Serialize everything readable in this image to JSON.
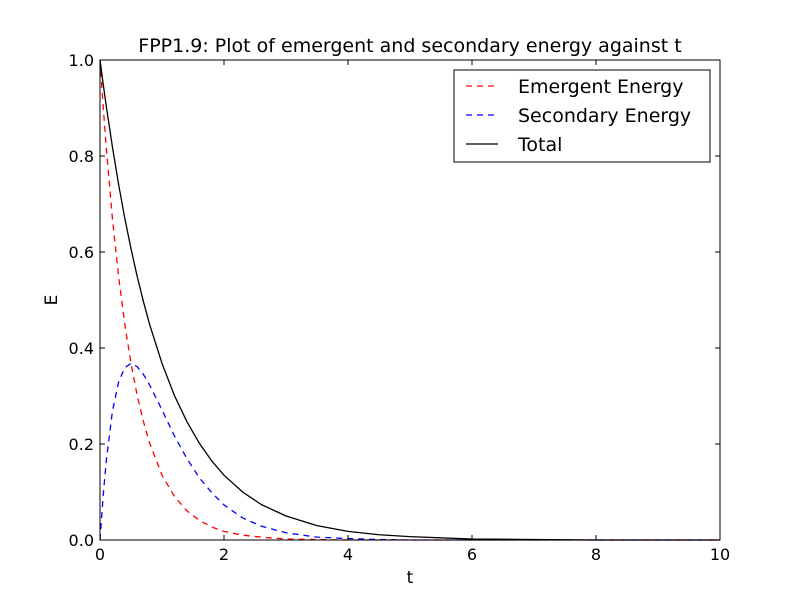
{
  "chart_data": {
    "type": "line",
    "title": "FPP1.9: Plot of emergent and secondary energy against t",
    "xlabel": "t",
    "ylabel": "E",
    "xlim": [
      0,
      10
    ],
    "ylim": [
      0,
      1.0
    ],
    "x_ticks": [
      0,
      2,
      4,
      6,
      8,
      10
    ],
    "x_tick_labels": [
      "0",
      "2",
      "4",
      "6",
      "8",
      "10"
    ],
    "y_ticks": [
      0,
      0.2,
      0.4,
      0.6,
      0.8,
      1.0
    ],
    "y_tick_labels": [
      "0.0",
      "0.2",
      "0.4",
      "0.6",
      "0.8",
      "1.0"
    ],
    "grid": false,
    "legend_position": "top-right",
    "x": [
      0,
      0.05,
      0.1,
      0.2,
      0.3,
      0.4,
      0.5,
      0.6,
      0.7,
      0.8,
      1.0,
      1.2,
      1.4,
      1.6,
      1.8,
      2.0,
      2.3,
      2.6,
      3.0,
      3.5,
      4.0,
      4.5,
      5.0,
      6.0,
      7.0,
      8.0,
      9.0,
      10.0
    ],
    "series": [
      {
        "name": "Emergent Energy",
        "color": "#ff0000",
        "style": "dashed",
        "values": [
          1.0,
          0.905,
          0.819,
          0.67,
          0.549,
          0.449,
          0.368,
          0.301,
          0.247,
          0.202,
          0.135,
          0.091,
          0.061,
          0.041,
          0.027,
          0.018,
          0.01,
          0.006,
          0.002,
          0.001,
          0.0,
          0.0,
          0.0,
          0.0,
          0.0,
          0.0,
          0.0,
          0.0
        ]
      },
      {
        "name": "Secondary Energy",
        "color": "#0000ff",
        "style": "dashed",
        "values": [
          0.0,
          0.09,
          0.164,
          0.268,
          0.329,
          0.359,
          0.368,
          0.361,
          0.345,
          0.323,
          0.271,
          0.217,
          0.17,
          0.13,
          0.099,
          0.073,
          0.046,
          0.029,
          0.015,
          0.006,
          0.003,
          0.001,
          0.0,
          0.0,
          0.0,
          0.0,
          0.0,
          0.0
        ]
      },
      {
        "name": "Total",
        "color": "#000000",
        "style": "solid",
        "values": [
          1.0,
          0.951,
          0.905,
          0.819,
          0.741,
          0.67,
          0.607,
          0.549,
          0.497,
          0.449,
          0.368,
          0.301,
          0.247,
          0.202,
          0.165,
          0.135,
          0.1,
          0.074,
          0.05,
          0.03,
          0.018,
          0.011,
          0.007,
          0.002,
          0.001,
          0.0,
          0.0,
          0.0
        ]
      }
    ]
  }
}
